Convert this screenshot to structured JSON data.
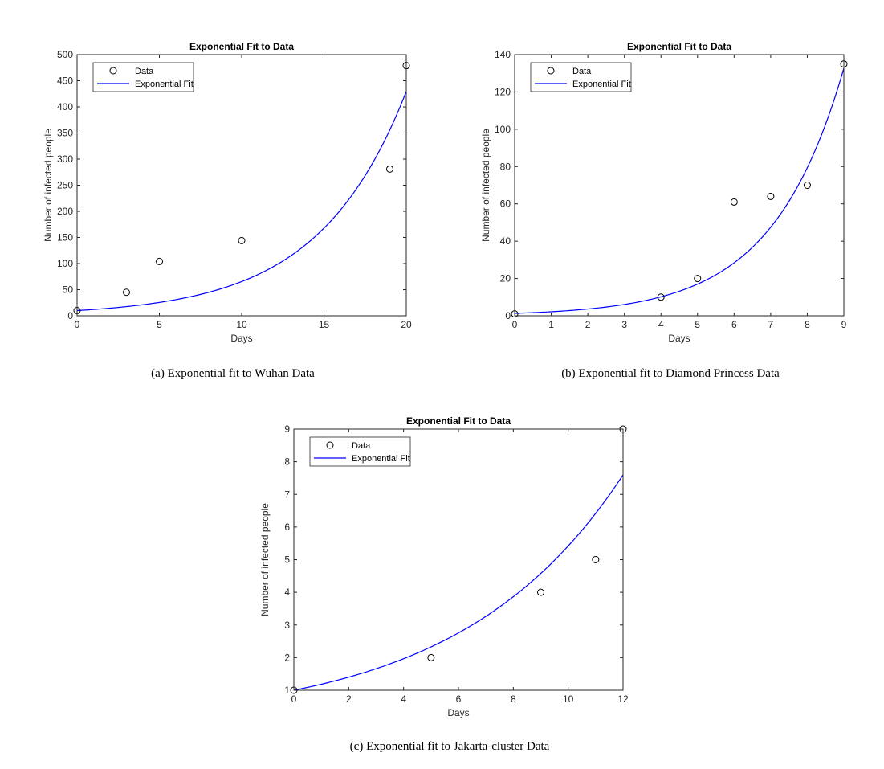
{
  "chart_data": [
    {
      "type": "scatter",
      "title": "Exponential Fit to Data",
      "xlabel": "Days",
      "ylabel": "Number of infected people",
      "xlim": [
        0,
        20
      ],
      "ylim": [
        0,
        500
      ],
      "xticks": [
        0,
        5,
        10,
        15,
        20
      ],
      "yticks": [
        0,
        50,
        100,
        150,
        200,
        250,
        300,
        350,
        400,
        450,
        500
      ],
      "grid": false,
      "legend_position": "top-left",
      "series": [
        {
          "name": "Data",
          "kind": "markers",
          "x": [
            0,
            3,
            5,
            10,
            19,
            20
          ],
          "y": [
            10,
            45,
            104,
            144,
            281,
            479
          ]
        },
        {
          "name": "Exponential Fit",
          "kind": "line",
          "color": "#0000ff",
          "a": 10,
          "b": 0.188,
          "x_range": [
            0,
            20
          ]
        }
      ]
    },
    {
      "type": "scatter",
      "title": "Exponential Fit to Data",
      "xlabel": "Days",
      "ylabel": "Number of infected people",
      "xlim": [
        0,
        9
      ],
      "ylim": [
        0,
        140
      ],
      "xticks": [
        0,
        1,
        2,
        3,
        4,
        5,
        6,
        7,
        8,
        9
      ],
      "yticks": [
        0,
        20,
        40,
        60,
        80,
        100,
        120,
        140
      ],
      "grid": false,
      "legend_position": "top-left",
      "series": [
        {
          "name": "Data",
          "kind": "markers",
          "x": [
            0,
            4,
            5,
            6,
            7,
            8,
            9
          ],
          "y": [
            1,
            10,
            20,
            61,
            64,
            70,
            135
          ]
        },
        {
          "name": "Exponential Fit",
          "kind": "line",
          "color": "#0000ff",
          "a": 1.3,
          "b": 0.514,
          "x_range": [
            0,
            9
          ]
        }
      ]
    },
    {
      "type": "scatter",
      "title": "Exponential Fit to Data",
      "xlabel": "Days",
      "ylabel": "Number of infected people",
      "xlim": [
        0,
        12
      ],
      "ylim": [
        1,
        9
      ],
      "xticks": [
        0,
        2,
        4,
        6,
        8,
        10,
        12
      ],
      "yticks": [
        1,
        2,
        3,
        4,
        5,
        6,
        7,
        8,
        9
      ],
      "grid": false,
      "legend_position": "top-left",
      "series": [
        {
          "name": "Data",
          "kind": "markers",
          "x": [
            0,
            5,
            9,
            11,
            12
          ],
          "y": [
            1,
            2,
            4,
            5,
            9
          ]
        },
        {
          "name": "Exponential Fit",
          "kind": "line",
          "color": "#0000ff",
          "a": 1.0,
          "b": 0.169,
          "x_range": [
            0,
            12
          ]
        }
      ]
    }
  ],
  "captions": [
    "(a) Exponential fit to Wuhan Data",
    "(b) Exponential fit to Diamond Princess Data",
    "(c) Exponential fit to Jakarta-cluster Data"
  ]
}
